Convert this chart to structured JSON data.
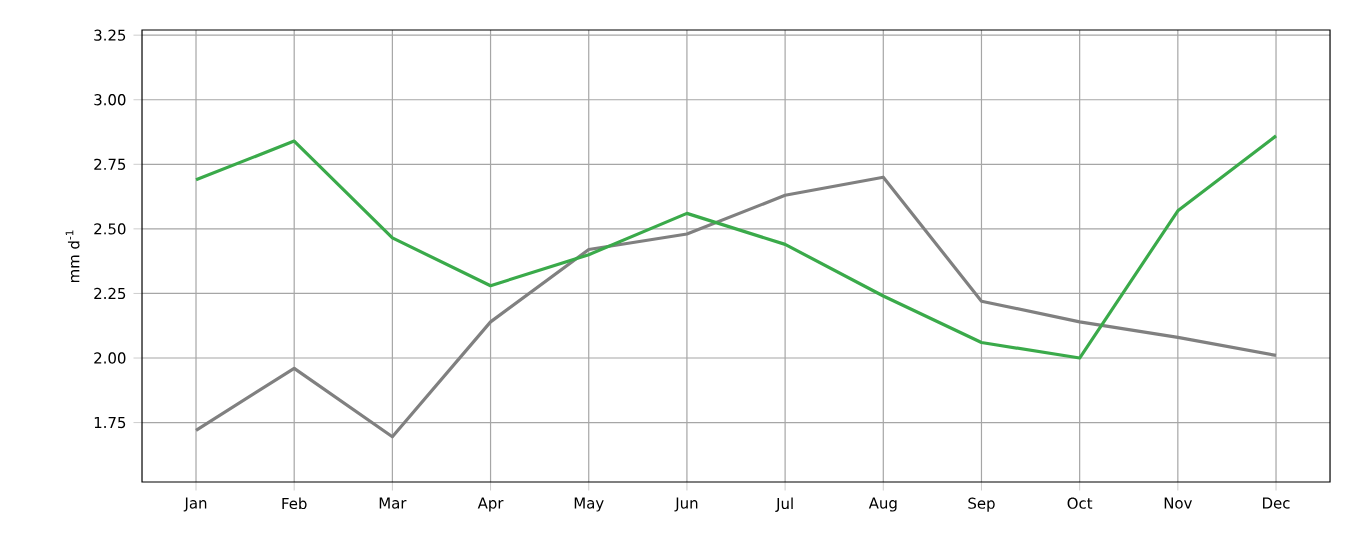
{
  "chart_data": {
    "type": "line",
    "ylabel": "mm d$^{-1}$",
    "categories": [
      "Jan",
      "Feb",
      "Mar",
      "Apr",
      "May",
      "Jun",
      "Jul",
      "Aug",
      "Sep",
      "Oct",
      "Nov",
      "Dec"
    ],
    "series": [
      {
        "color": "#808080",
        "values": [
          1.72,
          1.96,
          1.695,
          2.14,
          2.42,
          2.48,
          2.63,
          2.7,
          2.22,
          2.14,
          2.08,
          2.01
        ]
      },
      {
        "color": "#3aaa4a",
        "values": [
          2.69,
          2.84,
          2.465,
          2.28,
          2.4,
          2.56,
          2.44,
          2.24,
          2.06,
          2.0,
          2.57,
          2.86
        ]
      }
    ],
    "ylim": [
      1.52,
      3.27
    ],
    "yticks": [
      1.75,
      {
        "value": 2,
        "label": "2.00"
      },
      2.25,
      {
        "value": 2.5,
        "label": "2.50"
      },
      2.75,
      {
        "value": 3,
        "label": "3.00"
      },
      3.25
    ],
    "grid": true,
    "line_style": "solid"
  }
}
